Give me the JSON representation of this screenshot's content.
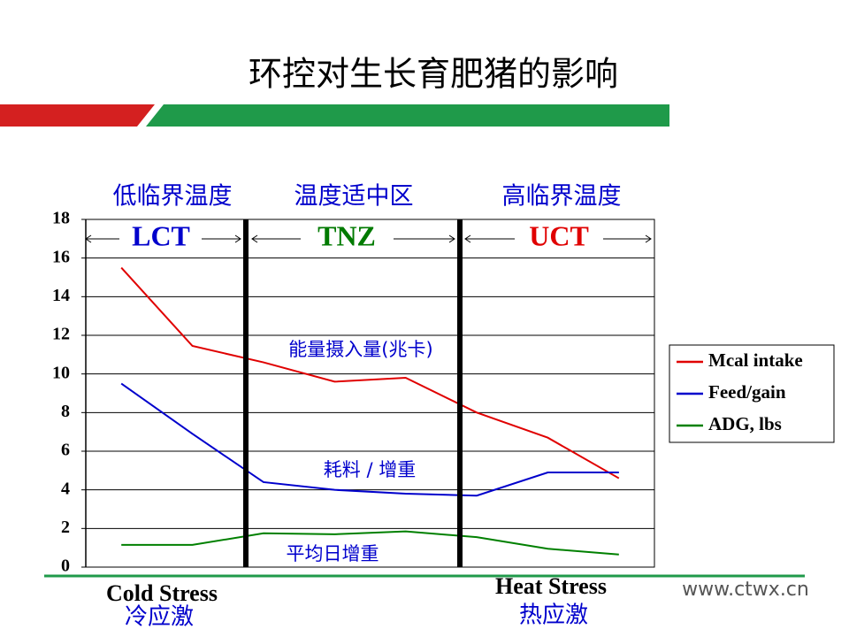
{
  "title": "环控对生长育肥猪的影响",
  "zones": [
    {
      "name": "低临界温度",
      "code": "LCT",
      "color": "#0000cc"
    },
    {
      "name": "温度适中区",
      "code": "TNZ",
      "color": "#007a00"
    },
    {
      "name": "高临界温度",
      "code": "UCT",
      "color": "#e00000"
    }
  ],
  "annotations": [
    "能量摄入量(兆卡)",
    "耗料 / 增重",
    "平均日增重"
  ],
  "footer": {
    "left": "Cold Stress",
    "left_cn": "冷应激",
    "right": "Heat Stress",
    "right_cn": "热应激",
    "site": "www.ctwx.cn"
  },
  "chart_data": {
    "type": "line",
    "categories": [
      null,
      null,
      null,
      null,
      null,
      null,
      null,
      null
    ],
    "series": [
      {
        "name": "Mcal intake",
        "color": "#e00000",
        "values": [
          15.5,
          11.45,
          10.6,
          9.6,
          9.8,
          8.0,
          6.7,
          4.6
        ]
      },
      {
        "name": "Feed/gain",
        "color": "#0000cc",
        "values": [
          9.5,
          6.9,
          4.4,
          4.0,
          3.8,
          3.7,
          4.9,
          4.9
        ]
      },
      {
        "name": "ADG, lbs",
        "color": "#008000",
        "values": [
          1.15,
          1.15,
          1.75,
          1.7,
          1.85,
          1.55,
          0.95,
          0.65
        ]
      }
    ],
    "ylim": [
      0,
      18
    ],
    "yticks": [
      0,
      2,
      4,
      6,
      8,
      10,
      12,
      14,
      16,
      18
    ],
    "grid": true,
    "legend": "right"
  }
}
